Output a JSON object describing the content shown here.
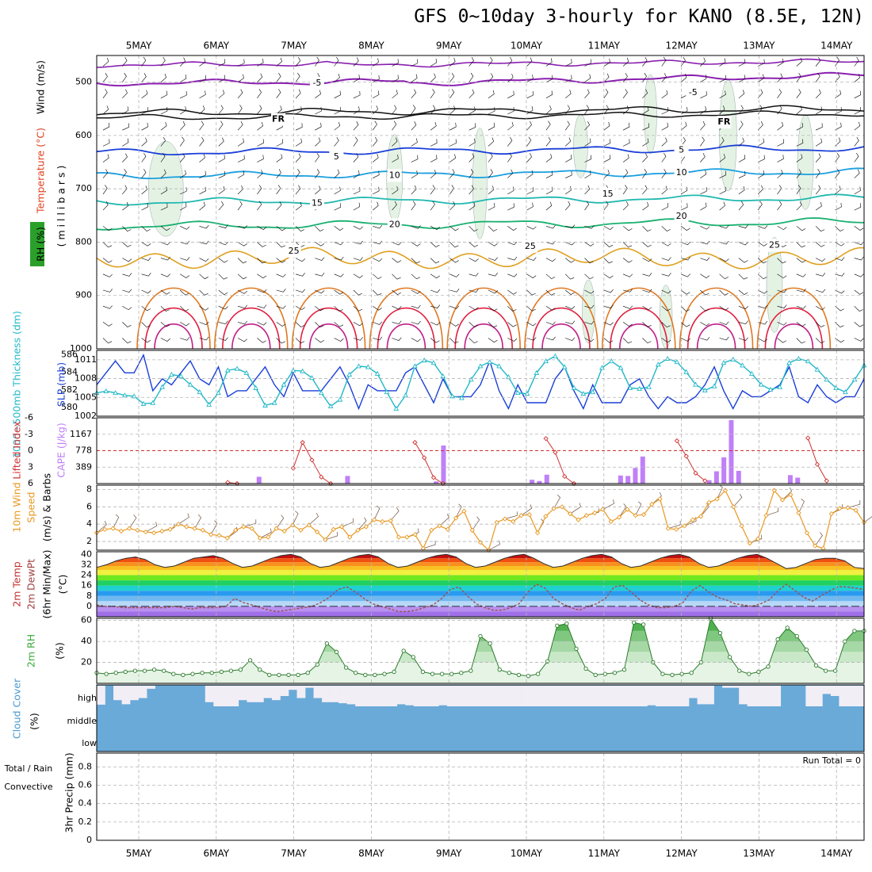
{
  "header": {
    "title": "GFS 0~10day 3-hourly for KANO (8.5E, 12N)"
  },
  "dates": [
    "5MAY",
    "6MAY",
    "7MAY",
    "8MAY",
    "9MAY",
    "10MAY",
    "11MAY",
    "12MAY",
    "13MAY",
    "14MAY"
  ],
  "colors": {
    "purple": "#8a1fb0",
    "black": "#111111",
    "blue": "#1a3fd8",
    "sky": "#1a9fe0",
    "teal": "#20b8b0",
    "green": "#18b070",
    "orange": "#e0a020",
    "darkorange": "#e07820",
    "red": "#e02040",
    "magenta": "#c0208a",
    "cyan": "#20b8c8",
    "slp": "#1a3fd8",
    "cape": "#c080f8",
    "li": "#d03030",
    "wind": "#e89820",
    "rh": "#3aaa3a",
    "cloud": "#6aaad8",
    "barb": "#000000"
  },
  "chart_data": [
    {
      "id": "upper-air",
      "type": "contour",
      "ylabel_parts": [
        {
          "text": "Wind (m/s)",
          "color": "#000000"
        },
        {
          "text": "Temperature (°C)",
          "color": "#e04020"
        },
        {
          "text": "( m i l l i b a r s )",
          "color": "#000000"
        },
        {
          "text": "RH (%)",
          "color": "#000000"
        }
      ],
      "yticks": [
        500,
        600,
        700,
        800,
        900,
        1000
      ],
      "ylim": [
        1000,
        450
      ],
      "isotherm_labels": [
        {
          "text": "-5",
          "day": 2.3,
          "p": 502,
          "color": "#8a1fb0"
        },
        {
          "text": "-5",
          "day": 7.15,
          "p": 520,
          "color": "#8a1fb0"
        },
        {
          "text": "FR",
          "day": 1.8,
          "p": 570,
          "color": "#111111"
        },
        {
          "text": "FR",
          "day": 7.55,
          "p": 575,
          "color": "#111111"
        },
        {
          "text": "5",
          "day": 2.55,
          "p": 640,
          "color": "#1a3fd8"
        },
        {
          "text": "5",
          "day": 7.0,
          "p": 628,
          "color": "#1a3fd8"
        },
        {
          "text": "10",
          "day": 3.3,
          "p": 675,
          "color": "#1a9fe0"
        },
        {
          "text": "10",
          "day": 7.0,
          "p": 670,
          "color": "#1a9fe0"
        },
        {
          "text": "15",
          "day": 2.3,
          "p": 727,
          "color": "#20b8b0"
        },
        {
          "text": "15",
          "day": 6.05,
          "p": 710,
          "color": "#20b8b0"
        },
        {
          "text": "20",
          "day": 3.3,
          "p": 767,
          "color": "#18b070"
        },
        {
          "text": "20",
          "day": 7.0,
          "p": 752,
          "color": "#18b070"
        },
        {
          "text": "25",
          "day": 2.0,
          "p": 817,
          "color": "#e0a020"
        },
        {
          "text": "25",
          "day": 5.05,
          "p": 808,
          "color": "#e0a020"
        },
        {
          "text": "25",
          "day": 8.2,
          "p": 806,
          "color": "#e0a020"
        }
      ]
    },
    {
      "id": "thickness-slp",
      "type": "line",
      "ylabel_left": "1000~500mb Thickness (dm)",
      "ylabel_right": "SLP (mb)",
      "left_ticks": [
        580,
        582,
        584,
        586
      ],
      "right_ticks": [
        1002,
        1005,
        1008,
        1011
      ],
      "left_ylim": [
        579,
        586.5
      ],
      "right_ylim": [
        1002,
        1012.5
      ],
      "series": [
        {
          "key": "slp",
          "axis": "right",
          "values": [
            1007,
            1009,
            1011,
            1009,
            1009,
            1012,
            1006,
            1008,
            1007,
            1009,
            1011,
            1008,
            1007,
            1010,
            1005,
            1006,
            1006,
            1008,
            1010,
            1007,
            1005,
            1009,
            1006,
            1006,
            1006,
            1008,
            1010,
            1007,
            1003,
            1007,
            1006,
            1006,
            1006,
            1009,
            1010,
            1007,
            1004,
            1008,
            1005,
            1005,
            1005,
            1007,
            1011,
            1006,
            1003,
            1007,
            1004,
            1004,
            1004,
            1008,
            1010,
            1006,
            1003,
            1007,
            1004,
            1004,
            1004,
            1007,
            1008,
            1005,
            1003,
            1005,
            1004,
            1004,
            1005,
            1007,
            1010,
            1006,
            1003,
            1006,
            1005,
            1005,
            1006,
            1007,
            1010,
            1005,
            1004,
            1007,
            1005,
            1004,
            1005,
            1005,
            1008
          ]
        },
        {
          "key": "thickness",
          "axis": "left",
          "values": [
            581.6,
            581.8,
            581.6,
            581.3,
            581.2,
            580.3,
            580.4,
            582.3,
            583.8,
            583.6,
            582.6,
            581.7,
            580.2,
            581.6,
            584.3,
            584.5,
            584.0,
            582.2,
            580.1,
            580.4,
            582.6,
            584.3,
            584.2,
            583.4,
            581.6,
            580.0,
            580.8,
            583.8,
            584.8,
            584.7,
            583.9,
            581.7,
            579.7,
            581.3,
            584.8,
            585.5,
            585.2,
            583.6,
            581.2,
            581.0,
            583.2,
            584.8,
            585.3,
            584.8,
            583.5,
            581.6,
            581.5,
            584.0,
            585.4,
            586.0,
            584.7,
            582.2,
            581.5,
            581.7,
            584.6,
            585.4,
            584.6,
            582.2,
            582.1,
            582.3,
            585.0,
            585.7,
            585.3,
            584.1,
            582.6,
            581.9,
            582.4,
            585.2,
            585.6,
            584.9,
            583.9,
            582.6,
            582.0,
            582.3,
            585.2,
            585.7,
            585.4,
            584.4,
            583.2,
            582.2,
            581.7,
            583.2,
            584.9
          ]
        }
      ]
    },
    {
      "id": "lifted-cape",
      "type": "bar+line",
      "ylabel_left": "Lifted Index",
      "ylabel_right": "CAPE (J/kg)",
      "li_ticks": [
        -6,
        -3,
        0,
        3,
        6
      ],
      "li_ylim": [
        6,
        -6
      ],
      "cape_ticks": [
        389,
        778,
        1167
      ],
      "cape_ylim": [
        0,
        1556
      ],
      "li_values": [
        null,
        null,
        null,
        null,
        null,
        null,
        null,
        null,
        null,
        null,
        null,
        null,
        null,
        null,
        5.8,
        6.2,
        null,
        null,
        null,
        null,
        null,
        3.2,
        -1.5,
        1.7,
        4.8,
        6.0,
        null,
        null,
        null,
        null,
        null,
        null,
        null,
        null,
        -1.5,
        1.3,
        4.9,
        6.0,
        null,
        null,
        null,
        null,
        null,
        null,
        null,
        null,
        null,
        null,
        -2.2,
        0.3,
        4.7,
        6.0,
        null,
        null,
        null,
        null,
        null,
        null,
        null,
        null,
        null,
        null,
        -1.8,
        1.0,
        4.1,
        5.5,
        null,
        null,
        null,
        null,
        null,
        null,
        null,
        null,
        null,
        null,
        -2.3,
        2.5,
        5.5,
        null,
        null,
        null,
        null
      ],
      "cape_values": [
        0,
        0,
        0,
        0,
        0,
        0,
        0,
        0,
        0,
        0,
        0,
        0,
        0,
        0,
        0,
        0,
        0,
        0,
        0,
        0,
        0,
        0,
        160,
        0,
        0,
        0,
        0,
        0,
        0,
        0,
        0,
        0,
        0,
        0,
        180,
        0,
        0,
        0,
        0,
        0,
        0,
        0,
        0,
        0,
        0,
        0,
        50,
        900,
        0,
        0,
        0,
        0,
        0,
        0,
        0,
        0,
        0,
        0,
        0,
        90,
        60,
        210,
        0,
        0,
        0,
        0,
        0,
        0,
        0,
        0,
        0,
        190,
        180,
        370,
        640,
        0,
        0,
        0,
        0,
        0,
        0,
        0,
        0,
        80,
        290,
        620,
        1500,
        300,
        0,
        0,
        0,
        0,
        0,
        0,
        200,
        140,
        0,
        0,
        0,
        0,
        0,
        0,
        0,
        0,
        0
      ]
    },
    {
      "id": "wind10m",
      "type": "line",
      "ylabel": "10m Wind Speed (m/s) & Barbs",
      "yticks": [
        2,
        4,
        6,
        8
      ],
      "ylim": [
        1,
        8.5
      ],
      "values": [
        3.0,
        3.4,
        3.5,
        3.2,
        3.5,
        3.3,
        3.1,
        3.0,
        3.2,
        3.4,
        4.0,
        3.7,
        3.5,
        3.3,
        2.8,
        2.7,
        2.4,
        3.3,
        3.7,
        3.5,
        2.4,
        2.5,
        3.5,
        3.2,
        3.9,
        3.3,
        3.9,
        3.1,
        2.2,
        3.4,
        3.7,
        2.5,
        3.3,
        3.7,
        4.5,
        4.3,
        4.4,
        2.5,
        2.5,
        2.8,
        1.2,
        3.3,
        3.8,
        3.4,
        4.7,
        5.5,
        3.3,
        1.9,
        1.0,
        4.2,
        4.6,
        4.3,
        5.0,
        5.1,
        3.0,
        4.9,
        5.8,
        6.0,
        5.2,
        4.5,
        5.0,
        5.3,
        5.7,
        4.3,
        4.8,
        5.7,
        5.0,
        5.1,
        6.3,
        6.9,
        3.5,
        3.4,
        3.8,
        4.5,
        4.9,
        6.5,
        6.9,
        7.9,
        6.0,
        3.8,
        1.8,
        2.3,
        5.0,
        7.9,
        6.8,
        7.4,
        5.3,
        3.0,
        1.5,
        1.2,
        5.2,
        5.8,
        5.9,
        5.6,
        4.2
      ]
    },
    {
      "id": "temp2m",
      "type": "area",
      "ylabel": "2m Temp 2m DewPt (6hr Min/Max) (°C)",
      "yticks": [
        0,
        8,
        16,
        24,
        32,
        40
      ],
      "ylim": [
        -8,
        42
      ],
      "temp_values": [
        30,
        32,
        35,
        37,
        38,
        36,
        32,
        30,
        31,
        34,
        37,
        38,
        39,
        37,
        33,
        30,
        31,
        34,
        37,
        39,
        40,
        38,
        33,
        30,
        31,
        34,
        37,
        39,
        40,
        38,
        33,
        30,
        31,
        34,
        37,
        39,
        40,
        38,
        33,
        30,
        31,
        34,
        37,
        39,
        40,
        37,
        33,
        30,
        31,
        34,
        37,
        39,
        40,
        38,
        33,
        30,
        31,
        34,
        37,
        39,
        40,
        38,
        33,
        30,
        31,
        34,
        37,
        39,
        40,
        37,
        33,
        29,
        30,
        33,
        36,
        37,
        37,
        35,
        30,
        29
      ],
      "dewpt_values": [
        1,
        0,
        0,
        -1,
        -1,
        -1,
        -1,
        -1,
        -1,
        0,
        -1,
        -2,
        -1,
        -1,
        -1,
        0,
        6,
        3,
        1,
        -1,
        -3,
        -4,
        -3,
        -2,
        -1,
        0,
        3,
        7,
        13,
        15,
        11,
        6,
        2,
        0,
        -2,
        -4,
        -4,
        -3,
        -1,
        1,
        6,
        13,
        15,
        8,
        2,
        -1,
        -3,
        -3,
        -1,
        2,
        11,
        17,
        14,
        6,
        2,
        -1,
        -3,
        0,
        2,
        6,
        15,
        16,
        11,
        5,
        1,
        -1,
        -1,
        0,
        3,
        12,
        16,
        11,
        7,
        5,
        2,
        1,
        0,
        2,
        5,
        12,
        17,
        12,
        7,
        4,
        8,
        12,
        15,
        15,
        14,
        13
      ]
    },
    {
      "id": "rh2m",
      "type": "area",
      "ylabel": "2m RH (%)",
      "yticks": [
        20,
        40,
        60
      ],
      "ylim": [
        0,
        62
      ],
      "values": [
        10,
        9,
        10,
        11,
        12,
        12,
        13,
        12,
        9,
        8,
        9,
        10,
        10,
        11,
        12,
        13,
        22,
        13,
        8,
        8,
        8,
        8,
        10,
        18,
        38,
        30,
        15,
        10,
        8,
        8,
        9,
        11,
        31,
        25,
        11,
        9,
        9,
        9,
        10,
        12,
        45,
        38,
        13,
        10,
        8,
        7,
        9,
        21,
        55,
        57,
        33,
        14,
        8,
        9,
        10,
        13,
        58,
        56,
        20,
        9,
        8,
        9,
        10,
        20,
        62,
        48,
        25,
        12,
        9,
        11,
        16,
        42,
        53,
        45,
        32,
        17,
        12,
        12,
        40,
        50,
        50
      ]
    },
    {
      "id": "cloud",
      "type": "bar",
      "ylabel": "Cloud Cover (%)",
      "levels": [
        "high",
        "middle",
        "low"
      ],
      "high_values": [
        8,
        100,
        30,
        10,
        30,
        40,
        85,
        100,
        100,
        100,
        100,
        100,
        100,
        20,
        0,
        0,
        0,
        30,
        20,
        20,
        40,
        30,
        50,
        80,
        40,
        90,
        40,
        20,
        20,
        15,
        10,
        0,
        0,
        0,
        0,
        0,
        10,
        5,
        0,
        0,
        0,
        5,
        0,
        0,
        0,
        0,
        0,
        0,
        0,
        0,
        0,
        0,
        0,
        0,
        0,
        0,
        0,
        0,
        0,
        0,
        0,
        0,
        0,
        0,
        0,
        0,
        5,
        0,
        0,
        0,
        0,
        40,
        10,
        10,
        100,
        90,
        90,
        10,
        0,
        0,
        0,
        0,
        100,
        100,
        100,
        0,
        0,
        60,
        50,
        0,
        0,
        0
      ]
    },
    {
      "id": "precip",
      "type": "bar",
      "ylabel_parts": [
        {
          "text": "Total / Rain",
          "color": "#2a9a2a"
        },
        {
          "text": "Convective",
          "color": "#e02020"
        },
        {
          "text": "3hr Precip (mm)",
          "color": "#000000"
        }
      ],
      "yticks": [
        0,
        0.2,
        0.4,
        0.6,
        0.8
      ],
      "ylim": [
        0,
        0.95
      ],
      "annotation": "Run Total = 0"
    }
  ]
}
